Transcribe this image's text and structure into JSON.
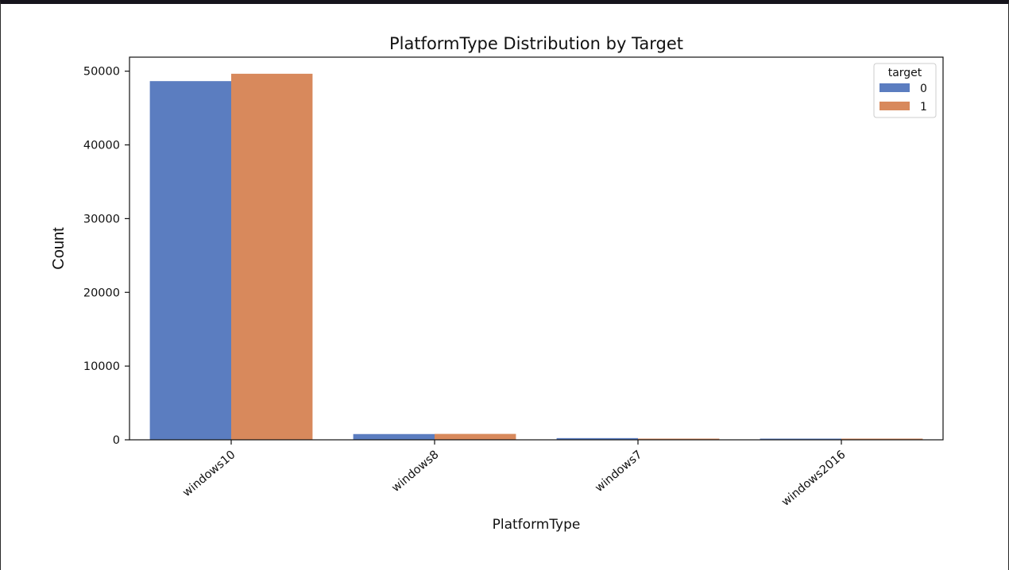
{
  "chart_data": {
    "type": "bar",
    "title": "PlatformType Distribution by Target",
    "xlabel": "PlatformType",
    "ylabel": "Count",
    "categories": [
      "windows10",
      "windows8",
      "windows7",
      "windows2016"
    ],
    "series": [
      {
        "name": "0",
        "color": "#5b7dc0",
        "values": [
          48650,
          780,
          230,
          90
        ]
      },
      {
        "name": "1",
        "color": "#d8895c",
        "values": [
          49650,
          800,
          40,
          60
        ]
      }
    ],
    "ylim": [
      0,
      51900
    ],
    "yticks": [
      0,
      10000,
      20000,
      30000,
      40000,
      50000
    ],
    "legend": {
      "title": "target",
      "placement": "top-right"
    },
    "grid": false
  }
}
